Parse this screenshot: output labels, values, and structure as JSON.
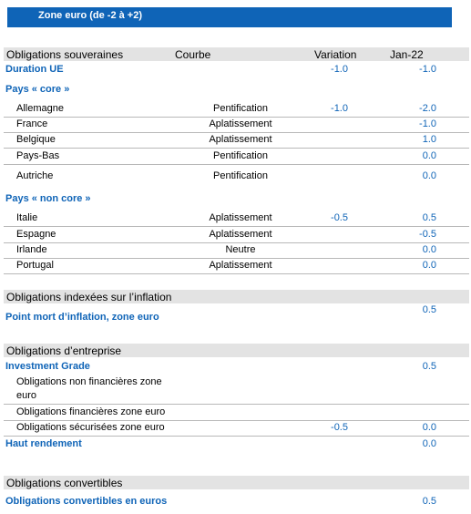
{
  "header": {
    "title": "Zone euro (de -2 à +2)"
  },
  "columns": {
    "courbe": "Courbe",
    "variation": "Variation",
    "jan": "Jan-22"
  },
  "sov": {
    "title": "Obligations souveraines",
    "duration": {
      "label": "Duration UE",
      "variation": "-1.0",
      "jan": "-1.0"
    },
    "core": {
      "label": "Pays « core »",
      "rows": [
        {
          "name": "Allemagne",
          "courbe": "Pentification",
          "variation": "-1.0",
          "jan": "-2.0"
        },
        {
          "name": "France",
          "courbe": "Aplatissement",
          "variation": "",
          "jan": "-1.0"
        },
        {
          "name": "Belgique",
          "courbe": "Aplatissement",
          "variation": "",
          "jan": "1.0"
        },
        {
          "name": "Pays-Bas",
          "courbe": "Pentification",
          "variation": "",
          "jan": "0.0"
        },
        {
          "name": "Autriche",
          "courbe": "Pentification",
          "variation": "",
          "jan": "0.0"
        }
      ]
    },
    "noncore": {
      "label": "Pays « non core »",
      "rows": [
        {
          "name": "Italie",
          "courbe": "Aplatissement",
          "variation": "-0.5",
          "jan": "0.5"
        },
        {
          "name": "Espagne",
          "courbe": "Aplatissement",
          "variation": "",
          "jan": "-0.5"
        },
        {
          "name": "Irlande",
          "courbe": "Neutre",
          "variation": "",
          "jan": "0.0"
        },
        {
          "name": "Portugal",
          "courbe": "Aplatissement",
          "variation": "",
          "jan": "0.0"
        }
      ]
    }
  },
  "inflation": {
    "title": "Obligations indexées sur l’inflation",
    "row": {
      "label": "Point mort d’inflation, zone euro",
      "jan": "0.5"
    }
  },
  "corp": {
    "title": "Obligations d’entreprise",
    "ig": {
      "label": "Investment Grade",
      "jan": "0.5"
    },
    "nonfin": {
      "line1": "Obligations non financières zone",
      "line2": "euro"
    },
    "fin": {
      "label": "Obligations financières zone euro"
    },
    "sec": {
      "label": "Obligations sécurisées zone euro",
      "variation": "-0.5",
      "jan": "0.0"
    },
    "hy": {
      "label": "Haut rendement",
      "jan": "0.0"
    }
  },
  "conv": {
    "title": "Obligations convertibles",
    "row": {
      "label": "Obligations convertibles en euros",
      "jan": "0.5"
    }
  }
}
